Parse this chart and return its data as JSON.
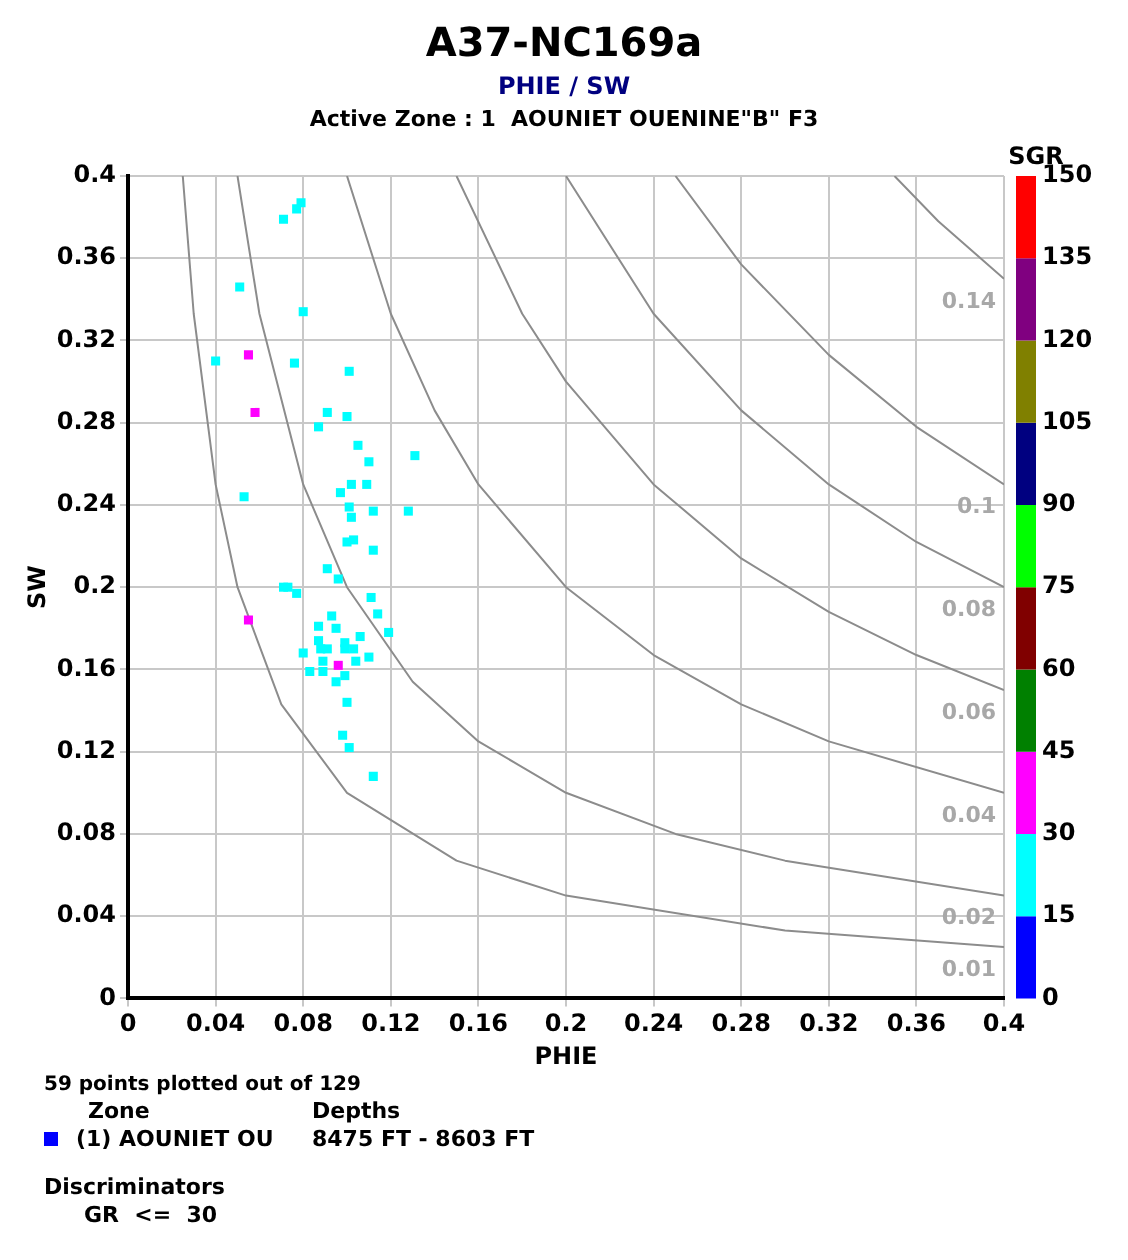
{
  "chart_data": {
    "type": "scatter",
    "title": "A37-NC169a",
    "subtitle": "PHIE / SW",
    "xlabel": "PHIE",
    "ylabel": "SW",
    "clabel": "SGR",
    "annotations": [
      "Active Zone : 1  AOUNIET OUENINE\"B\" F3",
      "59 points plotted out of 129",
      "Zone",
      "Depths",
      "(1) AOUNIET OU",
      "8475 FT - 8603 FT",
      "Discriminators",
      "GR  <=  30"
    ],
    "xlim": [
      0,
      0.4
    ],
    "ylim": [
      0,
      0.4
    ],
    "xticks": [
      0,
      0.04,
      0.08,
      0.12,
      0.16,
      0.2,
      0.24,
      0.28,
      0.32,
      0.36,
      0.4
    ],
    "yticks": [
      0,
      0.04,
      0.08,
      0.12,
      0.16,
      0.2,
      0.24,
      0.28,
      0.32,
      0.36,
      0.4
    ],
    "clim": [
      0,
      150
    ],
    "cticks": [
      0,
      15,
      30,
      45,
      60,
      75,
      90,
      105,
      120,
      135,
      150
    ],
    "colors": [
      "#0000ff",
      "#00ffff",
      "#ff00ff",
      "#008000",
      "#800000",
      "#00ff00",
      "#000080",
      "#808000",
      "#800080",
      "#ff0000"
    ],
    "grid": true,
    "marker": "square",
    "series": [
      {
        "type": "scatter",
        "x": [
          0.079,
          0.077,
          0.071,
          0.051,
          0.08,
          0.04,
          0.055,
          0.076,
          0.101,
          0.058,
          0.091,
          0.087,
          0.1,
          0.105,
          0.11,
          0.131,
          0.097,
          0.102,
          0.109,
          0.053,
          0.101,
          0.102,
          0.112,
          0.128,
          0.1,
          0.103,
          0.112,
          0.091,
          0.096,
          0.071,
          0.073,
          0.077,
          0.111,
          0.114,
          0.093,
          0.119,
          0.055,
          0.087,
          0.095,
          0.106,
          0.087,
          0.088,
          0.091,
          0.099,
          0.099,
          0.103,
          0.08,
          0.11,
          0.089,
          0.104,
          0.096,
          0.083,
          0.089,
          0.099,
          0.095,
          0.1,
          0.098,
          0.101,
          0.112
        ],
        "values": [
          0.387,
          0.384,
          0.379,
          0.346,
          0.334,
          0.31,
          0.313,
          0.309,
          0.305,
          0.285,
          0.285,
          0.278,
          0.283,
          0.269,
          0.261,
          0.264,
          0.246,
          0.25,
          0.25,
          0.244,
          0.239,
          0.234,
          0.237,
          0.237,
          0.222,
          0.223,
          0.218,
          0.209,
          0.204,
          0.2,
          0.2,
          0.197,
          0.195,
          0.187,
          0.186,
          0.178,
          0.184,
          0.181,
          0.18,
          0.176,
          0.174,
          0.17,
          0.17,
          0.173,
          0.17,
          0.17,
          0.168,
          0.166,
          0.164,
          0.164,
          0.162,
          0.159,
          0.159,
          0.157,
          0.154,
          0.144,
          0.128,
          0.122,
          0.108
        ],
        "colors": [
          "#00ffff",
          "#00ffff",
          "#00ffff",
          "#00ffff",
          "#00ffff",
          "#00ffff",
          "#ff00ff",
          "#00ffff",
          "#00ffff",
          "#ff00ff",
          "#00ffff",
          "#00ffff",
          "#00ffff",
          "#00ffff",
          "#00ffff",
          "#00ffff",
          "#00ffff",
          "#00ffff",
          "#00ffff",
          "#00ffff",
          "#00ffff",
          "#00ffff",
          "#00ffff",
          "#00ffff",
          "#00ffff",
          "#00ffff",
          "#00ffff",
          "#00ffff",
          "#00ffff",
          "#00ffff",
          "#00ffff",
          "#00ffff",
          "#00ffff",
          "#00ffff",
          "#00ffff",
          "#00ffff",
          "#ff00ff",
          "#00ffff",
          "#00ffff",
          "#00ffff",
          "#00ffff",
          "#00ffff",
          "#00ffff",
          "#00ffff",
          "#00ffff",
          "#00ffff",
          "#00ffff",
          "#00ffff",
          "#00ffff",
          "#00ffff",
          "#ff00ff",
          "#00ffff",
          "#00ffff",
          "#00ffff",
          "#00ffff",
          "#00ffff",
          "#00ffff",
          "#00ffff",
          "#00ffff"
        ]
      },
      {
        "type": "line",
        "name": "0.01",
        "color": "#8c8c8c",
        "marker": "none",
        "x": [
          0.025,
          0.03,
          0.04,
          0.05,
          0.07,
          0.1,
          0.15,
          0.2,
          0.3,
          0.4
        ],
        "values": [
          0.4,
          0.333,
          0.25,
          0.2,
          0.143,
          0.1,
          0.067,
          0.05,
          0.033,
          0.025
        ]
      },
      {
        "type": "line",
        "name": "0.02",
        "color": "#8c8c8c",
        "marker": "none",
        "x": [
          0.05,
          0.06,
          0.08,
          0.1,
          0.13,
          0.16,
          0.2,
          0.25,
          0.3,
          0.4
        ],
        "values": [
          0.4,
          0.333,
          0.25,
          0.2,
          0.154,
          0.125,
          0.1,
          0.08,
          0.067,
          0.05
        ]
      },
      {
        "type": "line",
        "name": "0.04",
        "color": "#8c8c8c",
        "marker": "none",
        "x": [
          0.1,
          0.12,
          0.14,
          0.16,
          0.2,
          0.24,
          0.28,
          0.32,
          0.4
        ],
        "values": [
          0.4,
          0.333,
          0.286,
          0.25,
          0.2,
          0.167,
          0.143,
          0.125,
          0.1
        ]
      },
      {
        "type": "line",
        "name": "0.06",
        "color": "#8c8c8c",
        "marker": "none",
        "x": [
          0.15,
          0.18,
          0.2,
          0.24,
          0.28,
          0.32,
          0.36,
          0.4
        ],
        "values": [
          0.4,
          0.333,
          0.3,
          0.25,
          0.214,
          0.188,
          0.167,
          0.15
        ]
      },
      {
        "type": "line",
        "name": "0.08",
        "color": "#8c8c8c",
        "marker": "none",
        "x": [
          0.2,
          0.24,
          0.28,
          0.32,
          0.36,
          0.4
        ],
        "values": [
          0.4,
          0.333,
          0.286,
          0.25,
          0.222,
          0.2
        ]
      },
      {
        "type": "line",
        "name": "0.1",
        "color": "#8c8c8c",
        "marker": "none",
        "x": [
          0.25,
          0.28,
          0.32,
          0.36,
          0.4
        ],
        "values": [
          0.4,
          0.357,
          0.313,
          0.278,
          0.25
        ]
      },
      {
        "type": "line",
        "name": "0.14",
        "color": "#8c8c8c",
        "marker": "none",
        "x": [
          0.35,
          0.37,
          0.4
        ],
        "values": [
          0.4,
          0.378,
          0.35
        ]
      }
    ]
  }
}
